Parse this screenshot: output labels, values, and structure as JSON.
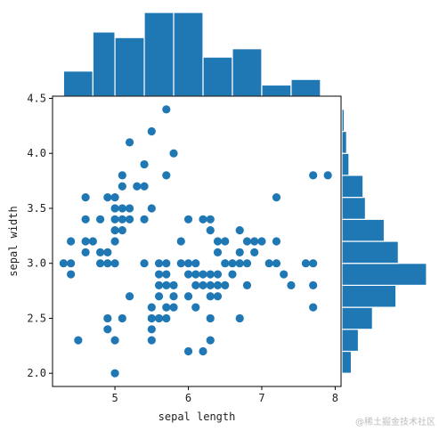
{
  "chart_data": {
    "type": "scatter",
    "title": "",
    "xlabel": "sepal length",
    "ylabel": "sepal width",
    "xlim": [
      4.15,
      8.08
    ],
    "ylim": [
      1.88,
      4.52
    ],
    "xticks": [
      5,
      6,
      7,
      8
    ],
    "yticks": [
      2.0,
      2.5,
      3.0,
      3.5,
      4.0,
      4.5
    ],
    "xtick_labels": [
      "5",
      "6",
      "7",
      "8"
    ],
    "ytick_labels": [
      "2.0",
      "2.5",
      "3.0",
      "3.5",
      "4.0",
      "4.5"
    ],
    "grid": false,
    "color": "#1f77b4",
    "points": [
      [
        4.3,
        3.0
      ],
      [
        4.4,
        2.9
      ],
      [
        4.4,
        3.0
      ],
      [
        4.4,
        3.2
      ],
      [
        4.5,
        2.3
      ],
      [
        4.6,
        3.1
      ],
      [
        4.6,
        3.2
      ],
      [
        4.6,
        3.4
      ],
      [
        4.6,
        3.6
      ],
      [
        4.7,
        3.2
      ],
      [
        4.8,
        3.0
      ],
      [
        4.8,
        3.1
      ],
      [
        4.8,
        3.4
      ],
      [
        4.9,
        2.4
      ],
      [
        4.9,
        2.5
      ],
      [
        4.9,
        3.0
      ],
      [
        4.9,
        3.1
      ],
      [
        4.9,
        3.6
      ],
      [
        5.0,
        2.0
      ],
      [
        5.0,
        2.3
      ],
      [
        5.0,
        3.0
      ],
      [
        5.0,
        3.2
      ],
      [
        5.0,
        3.3
      ],
      [
        5.0,
        3.4
      ],
      [
        5.0,
        3.5
      ],
      [
        5.0,
        3.6
      ],
      [
        5.1,
        2.5
      ],
      [
        5.1,
        3.3
      ],
      [
        5.1,
        3.4
      ],
      [
        5.1,
        3.5
      ],
      [
        5.1,
        3.7
      ],
      [
        5.1,
        3.8
      ],
      [
        5.2,
        2.7
      ],
      [
        5.2,
        3.4
      ],
      [
        5.2,
        3.5
      ],
      [
        5.2,
        4.1
      ],
      [
        5.3,
        3.7
      ],
      [
        5.4,
        3.0
      ],
      [
        5.4,
        3.4
      ],
      [
        5.4,
        3.7
      ],
      [
        5.4,
        3.9
      ],
      [
        5.5,
        2.3
      ],
      [
        5.5,
        2.4
      ],
      [
        5.5,
        2.5
      ],
      [
        5.5,
        2.6
      ],
      [
        5.5,
        3.5
      ],
      [
        5.5,
        4.2
      ],
      [
        5.6,
        2.5
      ],
      [
        5.6,
        2.7
      ],
      [
        5.6,
        2.8
      ],
      [
        5.6,
        2.9
      ],
      [
        5.6,
        3.0
      ],
      [
        5.7,
        2.5
      ],
      [
        5.7,
        2.6
      ],
      [
        5.7,
        2.8
      ],
      [
        5.7,
        2.9
      ],
      [
        5.7,
        3.0
      ],
      [
        5.7,
        3.8
      ],
      [
        5.7,
        4.4
      ],
      [
        5.8,
        2.6
      ],
      [
        5.8,
        2.7
      ],
      [
        5.8,
        2.8
      ],
      [
        5.8,
        4.0
      ],
      [
        5.9,
        3.0
      ],
      [
        5.9,
        3.2
      ],
      [
        6.0,
        2.2
      ],
      [
        6.0,
        2.7
      ],
      [
        6.0,
        2.9
      ],
      [
        6.0,
        3.0
      ],
      [
        6.0,
        3.4
      ],
      [
        6.1,
        2.6
      ],
      [
        6.1,
        2.8
      ],
      [
        6.1,
        2.9
      ],
      [
        6.1,
        3.0
      ],
      [
        6.2,
        2.2
      ],
      [
        6.2,
        2.8
      ],
      [
        6.2,
        2.9
      ],
      [
        6.2,
        3.4
      ],
      [
        6.3,
        2.3
      ],
      [
        6.3,
        2.5
      ],
      [
        6.3,
        2.7
      ],
      [
        6.3,
        2.8
      ],
      [
        6.3,
        2.9
      ],
      [
        6.3,
        3.3
      ],
      [
        6.3,
        3.4
      ],
      [
        6.4,
        2.7
      ],
      [
        6.4,
        2.8
      ],
      [
        6.4,
        2.9
      ],
      [
        6.4,
        3.1
      ],
      [
        6.4,
        3.2
      ],
      [
        6.5,
        2.8
      ],
      [
        6.5,
        3.0
      ],
      [
        6.5,
        3.2
      ],
      [
        6.6,
        2.9
      ],
      [
        6.6,
        3.0
      ],
      [
        6.7,
        2.5
      ],
      [
        6.7,
        3.0
      ],
      [
        6.7,
        3.1
      ],
      [
        6.7,
        3.3
      ],
      [
        6.8,
        2.8
      ],
      [
        6.8,
        3.0
      ],
      [
        6.8,
        3.2
      ],
      [
        6.9,
        3.1
      ],
      [
        6.9,
        3.2
      ],
      [
        7.0,
        3.2
      ],
      [
        7.1,
        3.0
      ],
      [
        7.2,
        3.0
      ],
      [
        7.2,
        3.2
      ],
      [
        7.2,
        3.6
      ],
      [
        7.3,
        2.9
      ],
      [
        7.4,
        2.8
      ],
      [
        7.6,
        3.0
      ],
      [
        7.7,
        2.6
      ],
      [
        7.7,
        2.8
      ],
      [
        7.7,
        3.0
      ],
      [
        7.7,
        3.8
      ],
      [
        7.9,
        3.8
      ]
    ],
    "x_histogram": {
      "bin_edges": [
        4.3,
        4.7,
        5.0,
        5.4,
        5.8,
        6.2,
        6.6,
        7.0,
        7.4,
        7.8
      ],
      "counts": [
        9,
        23,
        21,
        30,
        30,
        14,
        17,
        4,
        6
      ]
    },
    "y_histogram": {
      "bin_edges": [
        2.0,
        2.2,
        2.4,
        2.6,
        2.8,
        3.0,
        3.2,
        3.4,
        3.6,
        3.8,
        4.0,
        4.2,
        4.4
      ],
      "counts": [
        4,
        7,
        13,
        23,
        36,
        24,
        18,
        10,
        9,
        3,
        2,
        1
      ]
    }
  },
  "watermark": "@稀土掘金技术社区"
}
